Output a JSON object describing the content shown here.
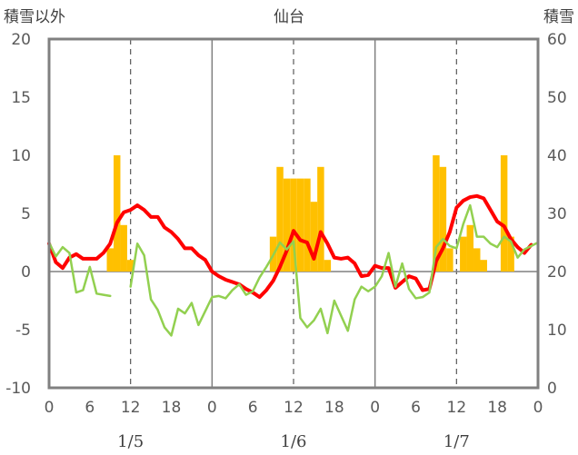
{
  "chart_data": {
    "type": "bar+line",
    "title": "仙台",
    "ylabel_left": "積雪以外",
    "ylabel_right": "積雪",
    "ylim_left": [
      -10,
      20
    ],
    "ylim_right": [
      0,
      60
    ],
    "yticks_left": [
      "20",
      "15",
      "10",
      "5",
      "0",
      "-5",
      "-10"
    ],
    "yticks_right": [
      "60",
      "50",
      "40",
      "30",
      "20",
      "10",
      "0"
    ],
    "xticks": [
      "0",
      "6",
      "12",
      "18",
      "0",
      "6",
      "12",
      "18",
      "0",
      "6",
      "12",
      "18",
      "0"
    ],
    "dates": [
      "1/5",
      "1/6",
      "1/7"
    ],
    "x_range_hours": [
      0,
      72
    ],
    "grid": "dashed vertical at 12h, solid at day boundaries",
    "series": [
      {
        "color": "#FFC000",
        "kind": "bar",
        "axis": "left",
        "values": [
          [
            9,
            2
          ],
          [
            10,
            10
          ],
          [
            11,
            4
          ],
          [
            12,
            1
          ],
          [
            33,
            3
          ],
          [
            34,
            9
          ],
          [
            35,
            8
          ],
          [
            36,
            8
          ],
          [
            37,
            8
          ],
          [
            38,
            8
          ],
          [
            39,
            6
          ],
          [
            40,
            9
          ],
          [
            41,
            1
          ],
          [
            57,
            10
          ],
          [
            58,
            9
          ],
          [
            59,
            2
          ],
          [
            61,
            3
          ],
          [
            62,
            4
          ],
          [
            63,
            2
          ],
          [
            64,
            1
          ],
          [
            67,
            10
          ],
          [
            68,
            3
          ]
        ]
      },
      {
        "color": "#FF0000",
        "kind": "line",
        "axis": "left",
        "values": [
          [
            0,
            2.4
          ],
          [
            1,
            0.8
          ],
          [
            2,
            0.3
          ],
          [
            3,
            1.2
          ],
          [
            4,
            1.5
          ],
          [
            5,
            1.1
          ],
          [
            6,
            1.1
          ],
          [
            7,
            1.1
          ],
          [
            8,
            1.6
          ],
          [
            9,
            2.4
          ],
          [
            10,
            4.2
          ],
          [
            11,
            5.1
          ],
          [
            12,
            5.3
          ],
          [
            13,
            5.7
          ],
          [
            14,
            5.3
          ],
          [
            15,
            4.7
          ],
          [
            16,
            4.7
          ],
          [
            17,
            3.8
          ],
          [
            18,
            3.4
          ],
          [
            19,
            2.8
          ],
          [
            20,
            2.0
          ],
          [
            21,
            2.0
          ],
          [
            22,
            1.4
          ],
          [
            23,
            1.0
          ],
          [
            24,
            0.0
          ],
          [
            25,
            -0.4
          ],
          [
            26,
            -0.7
          ],
          [
            27,
            -0.9
          ],
          [
            28,
            -1.1
          ],
          [
            29,
            -1.5
          ],
          [
            30,
            -1.8
          ],
          [
            31,
            -2.2
          ],
          [
            32,
            -1.6
          ],
          [
            33,
            -0.8
          ],
          [
            34,
            0.4
          ],
          [
            35,
            1.8
          ],
          [
            36,
            3.5
          ],
          [
            37,
            2.7
          ],
          [
            38,
            2.5
          ],
          [
            39,
            1.1
          ],
          [
            40,
            3.4
          ],
          [
            41,
            2.4
          ],
          [
            42,
            1.2
          ],
          [
            43,
            1.1
          ],
          [
            44,
            1.2
          ],
          [
            45,
            0.7
          ],
          [
            46,
            -0.4
          ],
          [
            47,
            -0.3
          ],
          [
            48,
            0.5
          ],
          [
            49,
            0.3
          ],
          [
            50,
            0.3
          ],
          [
            51,
            -1.4
          ],
          [
            52,
            -0.9
          ],
          [
            53,
            -0.4
          ],
          [
            54,
            -0.6
          ],
          [
            55,
            -1.6
          ],
          [
            56,
            -1.5
          ],
          [
            57,
            0.9
          ],
          [
            58,
            2.0
          ],
          [
            59,
            3.4
          ],
          [
            60,
            5.5
          ],
          [
            61,
            6.1
          ],
          [
            62,
            6.4
          ],
          [
            63,
            6.5
          ],
          [
            64,
            6.3
          ],
          [
            65,
            5.3
          ],
          [
            66,
            4.3
          ],
          [
            67,
            3.9
          ],
          [
            68,
            2.8
          ],
          [
            69,
            2.1
          ],
          [
            70,
            1.6
          ],
          [
            71,
            2.3
          ]
        ]
      },
      {
        "color": "#92D050",
        "kind": "line",
        "axis": "left",
        "values": [
          [
            0,
            2.5
          ],
          [
            1,
            1.3
          ],
          [
            2,
            2.1
          ],
          [
            3,
            1.6
          ],
          [
            4,
            -1.8
          ],
          [
            5,
            -1.6
          ],
          [
            6,
            0.4
          ],
          [
            7,
            -1.9
          ],
          [
            8,
            -2.0
          ],
          [
            9,
            -2.1
          ],
          [
            12,
            -1.3
          ],
          [
            13,
            2.4
          ],
          [
            14,
            1.4
          ],
          [
            15,
            -2.4
          ],
          [
            16,
            -3.3
          ],
          [
            17,
            -4.8
          ],
          [
            18,
            -5.5
          ],
          [
            19,
            -3.2
          ],
          [
            20,
            -3.6
          ],
          [
            21,
            -2.7
          ],
          [
            22,
            -4.6
          ],
          [
            23,
            -3.4
          ],
          [
            24,
            -2.2
          ],
          [
            25,
            -2.1
          ],
          [
            26,
            -2.3
          ],
          [
            27,
            -1.6
          ],
          [
            28,
            -1.1
          ],
          [
            29,
            -2.0
          ],
          [
            30,
            -1.7
          ],
          [
            31,
            -0.5
          ],
          [
            32,
            0.4
          ],
          [
            33,
            1.4
          ],
          [
            34,
            2.5
          ],
          [
            35,
            1.9
          ],
          [
            36,
            2.6
          ],
          [
            37,
            -4.0
          ],
          [
            38,
            -4.8
          ],
          [
            39,
            -4.2
          ],
          [
            40,
            -3.2
          ],
          [
            41,
            -5.3
          ],
          [
            42,
            -2.5
          ],
          [
            43,
            -3.8
          ],
          [
            44,
            -5.1
          ],
          [
            45,
            -2.4
          ],
          [
            46,
            -1.3
          ],
          [
            47,
            -1.7
          ],
          [
            48,
            -1.3
          ],
          [
            49,
            -0.4
          ],
          [
            50,
            1.6
          ],
          [
            51,
            -1.3
          ],
          [
            52,
            0.7
          ],
          [
            53,
            -1.5
          ],
          [
            54,
            -2.3
          ],
          [
            55,
            -2.2
          ],
          [
            56,
            -1.8
          ],
          [
            57,
            2.1
          ],
          [
            58,
            2.8
          ],
          [
            59,
            2.2
          ],
          [
            60,
            2.0
          ],
          [
            61,
            4.1
          ],
          [
            62,
            5.7
          ],
          [
            63,
            3.0
          ],
          [
            64,
            3.0
          ],
          [
            65,
            2.4
          ],
          [
            66,
            2.1
          ],
          [
            67,
            3.0
          ],
          [
            68,
            2.6
          ],
          [
            69,
            1.2
          ],
          [
            70,
            1.9
          ],
          [
            71,
            2.2
          ],
          [
            72,
            2.5
          ]
        ]
      },
      {
        "color": "#7030A0",
        "kind": "line",
        "axis": "right",
        "values": [
          [
            0,
            0
          ],
          [
            72,
            0
          ]
        ]
      }
    ]
  }
}
